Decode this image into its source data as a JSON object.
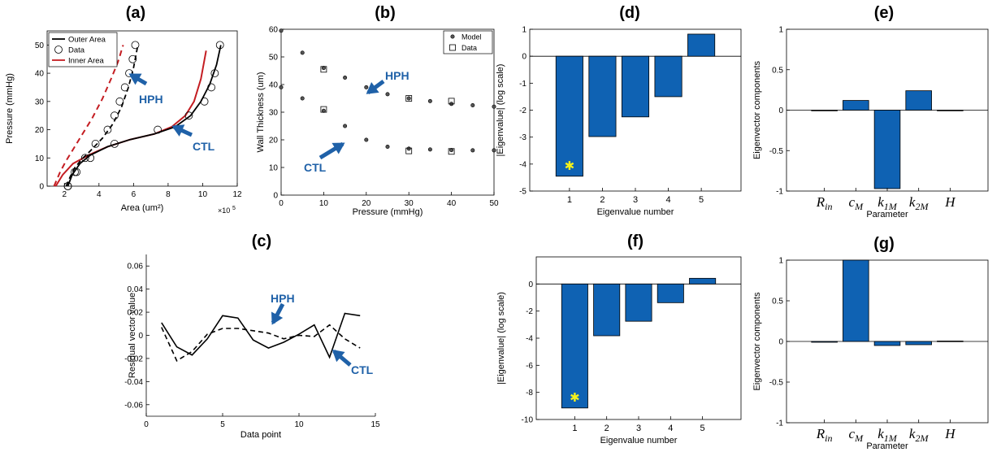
{
  "panel_labels": [
    "(a)",
    "(b)",
    "(c)",
    "(d)",
    "(e)",
    "(f)",
    "(g)"
  ],
  "colors": {
    "blue": "#1f61a8",
    "bar": "#0f62b3",
    "red": "#c41d22",
    "star": "#f4f11c",
    "black": "#000000"
  },
  "chart_data": [
    {
      "id": "a",
      "type": "line",
      "label": "(a)",
      "xlabel": "Area (um²)",
      "ylabel": "Pressure (mmHg)",
      "xexp": "×10",
      "xexp_power": "5",
      "xlim": [
        1,
        12
      ],
      "ylim": [
        0,
        55
      ],
      "xticks": [
        "2",
        "4",
        "6",
        "8",
        "10",
        "12"
      ],
      "yticks": [
        "0",
        "10",
        "20",
        "30",
        "40",
        "50"
      ],
      "legend": [
        "Outer Area",
        "Data",
        "Inner Area"
      ],
      "annotations": [
        "HPH",
        "CTL"
      ],
      "series": [
        {
          "name": "CTL Outer Area",
          "x": [
            2.2,
            2.45,
            2.9,
            3.5,
            4.5,
            5.8,
            7.2,
            8.4,
            9.3,
            9.9,
            10.4,
            10.8,
            11.05
          ],
          "y": [
            0,
            4,
            8,
            11,
            14,
            16.5,
            18.5,
            21,
            25,
            30,
            36,
            43,
            50
          ]
        },
        {
          "name": "HPH Outer Area",
          "x": [
            2.1,
            2.35,
            2.6,
            3.0,
            3.5,
            4.2,
            4.8,
            5.3,
            5.7,
            6.0,
            6.25
          ],
          "y": [
            0,
            3.5,
            6.5,
            9.5,
            12.5,
            17,
            22,
            28,
            35,
            42,
            50
          ]
        },
        {
          "name": "CTL Inner Area",
          "x": [
            1.5,
            1.9,
            2.5,
            3.4,
            4.5,
            5.8,
            7.2,
            8.2,
            9.0,
            9.5,
            9.9,
            10.2
          ],
          "y": [
            0,
            4,
            8,
            11,
            14,
            16.5,
            18.5,
            21,
            25,
            30,
            38,
            48
          ]
        },
        {
          "name": "HPH Inner Area",
          "x": [
            1.4,
            1.75,
            2.1,
            2.5,
            3.0,
            3.6,
            4.2,
            4.7,
            5.1,
            5.4
          ],
          "y": [
            0,
            5,
            9,
            13,
            18,
            24,
            31,
            38,
            44,
            50
          ]
        },
        {
          "name": "CTL Data",
          "x": [
            2.2,
            2.7,
            3.5,
            4.9,
            7.4,
            9.2,
            10.1,
            10.5,
            10.7,
            11.0
          ],
          "y": [
            0,
            5,
            10,
            15,
            20,
            25,
            30,
            35,
            40,
            50
          ]
        },
        {
          "name": "HPH Data",
          "x": [
            2.2,
            2.6,
            3.2,
            3.8,
            4.5,
            4.9,
            5.2,
            5.5,
            5.75,
            5.95,
            6.1
          ],
          "y": [
            0,
            5,
            10,
            15,
            20,
            25,
            30,
            35,
            40,
            45,
            50
          ]
        }
      ]
    },
    {
      "id": "b",
      "type": "scatter",
      "label": "(b)",
      "xlabel": "Pressure (mmHg)",
      "ylabel": "Wall Thickness (um)",
      "xlim": [
        0,
        50
      ],
      "ylim": [
        0,
        60
      ],
      "xticks": [
        "0",
        "10",
        "20",
        "30",
        "40",
        "50"
      ],
      "yticks": [
        "0",
        "10",
        "20",
        "30",
        "40",
        "50",
        "60"
      ],
      "legend": [
        "Model",
        "Data"
      ],
      "annotations": [
        "HPH",
        "CTL"
      ],
      "series": [
        {
          "name": "HPH Model",
          "x": [
            0,
            5,
            10,
            15,
            20,
            25,
            30,
            35,
            40,
            45,
            50
          ],
          "y": [
            59.5,
            51.5,
            46,
            42.5,
            39,
            36.5,
            35,
            34,
            33,
            32.5,
            32
          ]
        },
        {
          "name": "CTL Model",
          "x": [
            0,
            5,
            10,
            15,
            20,
            25,
            30,
            35,
            40,
            45,
            50
          ],
          "y": [
            39,
            35,
            30.5,
            25,
            20,
            17.5,
            16.8,
            16.5,
            16.3,
            16.2,
            16.2
          ]
        },
        {
          "name": "HPH Data",
          "x": [
            10,
            30,
            40
          ],
          "y": [
            45.5,
            35,
            34
          ]
        },
        {
          "name": "CTL Data",
          "x": [
            10,
            30,
            40
          ],
          "y": [
            31,
            16,
            15.8
          ]
        }
      ]
    },
    {
      "id": "c",
      "type": "line",
      "label": "(c)",
      "xlabel": "Data point",
      "ylabel": "Residual vector value",
      "xlim": [
        0,
        15
      ],
      "ylim": [
        -0.07,
        0.07
      ],
      "xticks": [
        "0",
        "5",
        "10",
        "15"
      ],
      "yticks": [
        "-0.06",
        "-0.04",
        "-0.02",
        "0",
        "0.02",
        "0.04",
        "0.06"
      ],
      "annotations": [
        "HPH",
        "CTL"
      ],
      "series": [
        {
          "name": "CTL",
          "style": "solid",
          "x": [
            1,
            2,
            3,
            4,
            5,
            6,
            7,
            8,
            9,
            10,
            11,
            12,
            13,
            14
          ],
          "y": [
            0.011,
            -0.01,
            -0.017,
            -0.003,
            0.017,
            0.015,
            -0.004,
            -0.011,
            -0.006,
            0.001,
            0.009,
            -0.019,
            0.019,
            0.017
          ]
        },
        {
          "name": "HPH",
          "style": "dashed",
          "x": [
            1,
            2,
            3,
            4,
            5,
            6,
            7,
            8,
            9,
            10,
            11,
            12,
            13,
            14
          ],
          "y": [
            0.007,
            -0.022,
            -0.014,
            0.001,
            0.006,
            0.006,
            0.004,
            0.002,
            -0.003,
            0.0,
            -0.001,
            0.009,
            -0.003,
            -0.011
          ]
        }
      ]
    },
    {
      "id": "d",
      "type": "bar",
      "label": "(d)",
      "xlabel": "Eigenvalue number",
      "ylabel": "|Eigenvalue| (log scale)",
      "categories": [
        "1",
        "2",
        "3",
        "4",
        "5"
      ],
      "values": [
        -4.45,
        -2.98,
        -2.25,
        -1.5,
        0.82
      ],
      "ylim": [
        -5,
        1
      ],
      "yticks": [
        "-5",
        "-4",
        "-3",
        "-2",
        "-1",
        "0",
        "1"
      ],
      "star_on": 0
    },
    {
      "id": "e",
      "type": "bar",
      "label": "(e)",
      "xlabel": "Parameter",
      "ylabel": "Eigenvector components",
      "categories": [
        "R_in",
        "c_M",
        "k_1M",
        "k_2M",
        "H"
      ],
      "values": [
        0,
        0.12,
        -0.97,
        0.24,
        0
      ],
      "ylim": [
        -1,
        1
      ],
      "yticks": [
        "-1",
        "-0.5",
        "0",
        "0.5",
        "1"
      ]
    },
    {
      "id": "f",
      "type": "bar",
      "label": "(f)",
      "xlabel": "Eigenvalue number",
      "ylabel": "|Eigenvalue| (log scale)",
      "categories": [
        "1",
        "2",
        "3",
        "4",
        "5"
      ],
      "values": [
        -9.15,
        -3.82,
        -2.75,
        -1.38,
        0.42
      ],
      "ylim": [
        -10,
        2
      ],
      "yticks": [
        "-10",
        "-8",
        "-6",
        "-4",
        "-2",
        "0"
      ],
      "star_on": 0
    },
    {
      "id": "g",
      "type": "bar",
      "label": "(g)",
      "xlabel": "Parameter",
      "ylabel": "Eigenvector components",
      "categories": [
        "R_in",
        "c_M",
        "k_1M",
        "k_2M",
        "H"
      ],
      "values": [
        -0.01,
        1.0,
        -0.05,
        -0.04,
        0.005
      ],
      "ylim": [
        -1,
        1
      ],
      "yticks": [
        "-1",
        "-0.5",
        "0",
        "0.5",
        "1"
      ]
    }
  ]
}
